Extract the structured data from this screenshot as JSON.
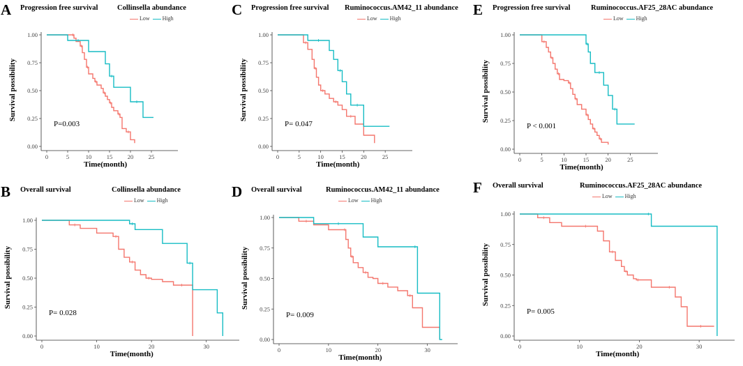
{
  "colors": {
    "low": "#f4766d",
    "high": "#16bcc4",
    "axis": "#333333"
  },
  "chart_data": [
    {
      "id": "A",
      "type": "line",
      "title": "Progression free survival",
      "legend_title": "Collinsella abundance",
      "legend": [
        "Low",
        "High"
      ],
      "xlabel": "Time(month)",
      "ylabel": "Survival possibility",
      "xlim": [
        0,
        30
      ],
      "xticks": [
        0,
        5,
        10,
        15,
        20,
        25
      ],
      "ylim": [
        0,
        1
      ],
      "yticks": [
        "0.00",
        "0.25",
        "0.50",
        "0.75",
        "1.00"
      ],
      "pvalue": "P=0.003",
      "series": [
        {
          "name": "Low",
          "x": [
            0,
            6,
            6.5,
            7,
            8,
            8.5,
            9,
            9.5,
            10,
            11,
            11.5,
            12,
            13,
            13.5,
            14,
            14.5,
            15,
            15.5,
            16,
            17,
            17.5,
            18,
            19,
            20,
            21
          ],
          "y": [
            1,
            1,
            0.97,
            0.94,
            0.9,
            0.84,
            0.78,
            0.71,
            0.65,
            0.61,
            0.58,
            0.55,
            0.52,
            0.48,
            0.45,
            0.42,
            0.39,
            0.35,
            0.32,
            0.29,
            0.26,
            0.16,
            0.13,
            0.06,
            0.03
          ]
        },
        {
          "name": "High",
          "x": [
            0,
            5,
            10,
            14,
            15,
            16,
            17,
            20,
            23,
            25.5
          ],
          "y": [
            1,
            0.95,
            0.85,
            0.74,
            0.63,
            0.53,
            0.53,
            0.4,
            0.26,
            0.26
          ]
        }
      ]
    },
    {
      "id": "B",
      "type": "line",
      "title": "Overall survival",
      "legend_title": "Collinsella abundance",
      "legend": [
        "Low",
        "High"
      ],
      "xlabel": "Time(month)",
      "ylabel": "Survival possibility",
      "xlim": [
        0,
        35
      ],
      "xticks": [
        0,
        10,
        20,
        30
      ],
      "ylim": [
        0,
        1
      ],
      "yticks": [
        "0.00",
        "0.25",
        "0.50",
        "0.75",
        "1.00"
      ],
      "pvalue": "P= 0.028",
      "series": [
        {
          "name": "Low",
          "x": [
            0,
            5,
            7,
            10,
            13,
            14,
            15,
            16,
            17,
            18,
            19,
            20,
            22,
            24,
            27,
            27.5
          ],
          "y": [
            1,
            0.96,
            0.93,
            0.89,
            0.86,
            0.75,
            0.68,
            0.64,
            0.57,
            0.53,
            0.5,
            0.49,
            0.47,
            0.44,
            0.44,
            0
          ]
        },
        {
          "name": "High",
          "x": [
            0,
            16,
            17,
            22,
            26.5,
            27.5,
            32,
            33
          ],
          "y": [
            1,
            0.97,
            0.92,
            0.8,
            0.63,
            0.4,
            0.2,
            0
          ]
        }
      ]
    },
    {
      "id": "C",
      "type": "line",
      "title": "Progression free survival",
      "legend_title": "Ruminococcus.AM42_11 abundance",
      "legend": [
        "Low",
        "High"
      ],
      "xlabel": "Time(month)",
      "ylabel": "Survival possibility",
      "xlim": [
        0,
        30
      ],
      "xticks": [
        0,
        5,
        10,
        15,
        20,
        25
      ],
      "ylim": [
        0,
        1
      ],
      "yticks": [
        "0.00",
        "0.25",
        "0.50",
        "0.75",
        "1.00"
      ],
      "pvalue": "P= 0.047",
      "series": [
        {
          "name": "Low",
          "x": [
            0,
            6,
            7,
            8,
            8.5,
            9,
            9.5,
            10,
            11,
            12,
            13,
            14,
            15,
            16,
            18,
            20,
            22.5
          ],
          "y": [
            1,
            0.93,
            0.87,
            0.78,
            0.7,
            0.62,
            0.55,
            0.5,
            0.47,
            0.43,
            0.4,
            0.37,
            0.33,
            0.27,
            0.2,
            0.1,
            0.03
          ]
        },
        {
          "name": "High",
          "x": [
            0,
            7,
            12,
            13,
            14,
            15,
            16,
            17,
            20,
            26
          ],
          "y": [
            1,
            0.95,
            0.86,
            0.78,
            0.68,
            0.58,
            0.47,
            0.37,
            0.18,
            0.18
          ]
        }
      ]
    },
    {
      "id": "D",
      "type": "line",
      "title": "Overall survival",
      "legend_title": "Ruminococcus.AM42_11 abundance",
      "legend": [
        "Low",
        "High"
      ],
      "xlabel": "Time(month)",
      "ylabel": "Survival possibility",
      "xlim": [
        0,
        35
      ],
      "xticks": [
        0,
        10,
        20,
        30
      ],
      "ylim": [
        0,
        1
      ],
      "yticks": [
        "0.00",
        "0.25",
        "0.50",
        "0.75",
        "1.00"
      ],
      "pvalue": "P= 0.009",
      "series": [
        {
          "name": "Low",
          "x": [
            0,
            4,
            7,
            10,
            13,
            13.5,
            14,
            14.5,
            15,
            16,
            17,
            18,
            19,
            20,
            22,
            24,
            26,
            27,
            29,
            32.5
          ],
          "y": [
            1,
            0.97,
            0.94,
            0.9,
            0.9,
            0.82,
            0.75,
            0.68,
            0.63,
            0.59,
            0.55,
            0.51,
            0.5,
            0.46,
            0.43,
            0.4,
            0.36,
            0.26,
            0.1,
            0
          ]
        },
        {
          "name": "High",
          "x": [
            0,
            7,
            17,
            20,
            27,
            28,
            32.5,
            33
          ],
          "y": [
            1,
            0.95,
            0.84,
            0.76,
            0.76,
            0.38,
            0,
            0
          ]
        }
      ]
    },
    {
      "id": "E",
      "type": "line",
      "title": "Progression free survival",
      "legend_title": "Ruminococcus.AF25_28AC abundance",
      "legend": [
        "Low",
        "High"
      ],
      "xlabel": "Time(month)",
      "ylabel": "Survival possibility",
      "xlim": [
        0,
        30
      ],
      "xticks": [
        0,
        5,
        10,
        15,
        20,
        25
      ],
      "ylim": [
        0,
        1
      ],
      "yticks": [
        "0.00",
        "0.25",
        "0.50",
        "0.75",
        "1.00"
      ],
      "pvalue": "P < 0.001",
      "series": [
        {
          "name": "Low",
          "x": [
            0,
            5,
            6,
            6.5,
            7,
            7.5,
            8,
            8.5,
            9,
            10,
            11,
            11.5,
            12,
            12.5,
            13,
            14,
            15,
            15.5,
            16,
            16.5,
            17,
            17.5,
            18,
            18.5,
            20
          ],
          "y": [
            1,
            0.94,
            0.89,
            0.85,
            0.8,
            0.75,
            0.7,
            0.66,
            0.61,
            0.6,
            0.58,
            0.53,
            0.48,
            0.44,
            0.39,
            0.35,
            0.3,
            0.26,
            0.22,
            0.18,
            0.15,
            0.12,
            0.09,
            0.06,
            0.04
          ]
        },
        {
          "name": "High",
          "x": [
            0,
            15,
            15.5,
            16,
            17,
            19,
            20,
            21,
            22,
            26
          ],
          "y": [
            1,
            0.92,
            0.85,
            0.75,
            0.67,
            0.56,
            0.47,
            0.35,
            0.22,
            0.22
          ]
        }
      ]
    },
    {
      "id": "F",
      "type": "line",
      "title": "Overall survival",
      "legend_title": "Ruminococcus.AF25_28AC abundance",
      "legend": [
        "Low",
        "High"
      ],
      "xlabel": "Time(month)",
      "ylabel": "Survival possibility",
      "xlim": [
        0,
        35
      ],
      "xticks": [
        0,
        10,
        20,
        30
      ],
      "ylim": [
        0,
        1
      ],
      "yticks": [
        "0.00",
        "0.25",
        "0.50",
        "0.75",
        "1.00"
      ],
      "pvalue": "P= 0.005",
      "series": [
        {
          "name": "Low",
          "x": [
            0,
            3,
            5,
            7,
            9,
            13,
            14,
            15,
            16,
            17,
            17.5,
            18,
            19,
            19.5,
            20,
            22,
            24,
            26,
            27,
            28,
            32.5
          ],
          "y": [
            1,
            0.97,
            0.93,
            0.9,
            0.9,
            0.86,
            0.78,
            0.69,
            0.62,
            0.57,
            0.53,
            0.5,
            0.47,
            0.46,
            0.46,
            0.4,
            0.4,
            0.32,
            0.24,
            0.08,
            0.08
          ]
        },
        {
          "name": "High",
          "x": [
            0,
            21,
            22,
            32.5,
            33
          ],
          "y": [
            1,
            1,
            0.9,
            0.9,
            0
          ]
        }
      ]
    }
  ]
}
